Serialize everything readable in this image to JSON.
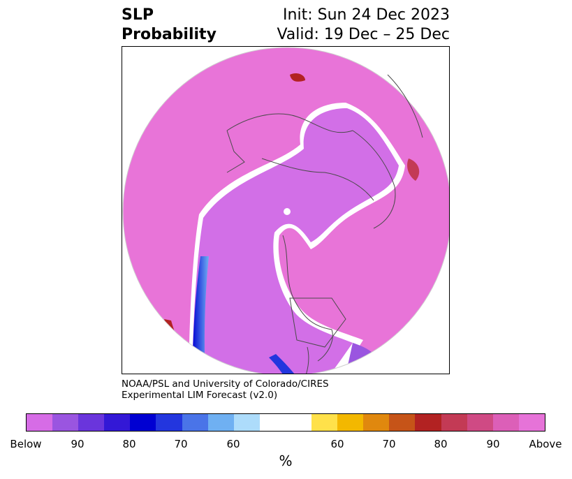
{
  "title": {
    "left_line1": "SLP",
    "left_line2": "Probability",
    "right_line1": "Init: Sun 24 Dec 2023",
    "right_line2": "Valid: 19 Dec – 25 Dec"
  },
  "credit": {
    "line1": "NOAA/PSL and University of Colorado/CIRES",
    "line2": "Experimental LIM Forecast (v2.0)"
  },
  "colorbar": {
    "unit": "%",
    "colors": [
      "#d66ce6",
      "#9a55e0",
      "#6a35dc",
      "#3318d6",
      "#0000d2",
      "#2336de",
      "#4a74e8",
      "#6fb0f2",
      "#addcfb",
      "#ffffff",
      "#ffffff",
      "#ffe14a",
      "#f3b800",
      "#e0880e",
      "#c65418",
      "#b22222",
      "#c33a55",
      "#cf4a84",
      "#dc5fb8",
      "#e673d8"
    ],
    "tick_labels": [
      "Below",
      "90",
      "80",
      "70",
      "60",
      "60",
      "70",
      "80",
      "90",
      "Above"
    ]
  },
  "map": {
    "projection": "north-polar-stereographic",
    "below_color": "#d26fe7",
    "above_color": "#e874d8"
  }
}
